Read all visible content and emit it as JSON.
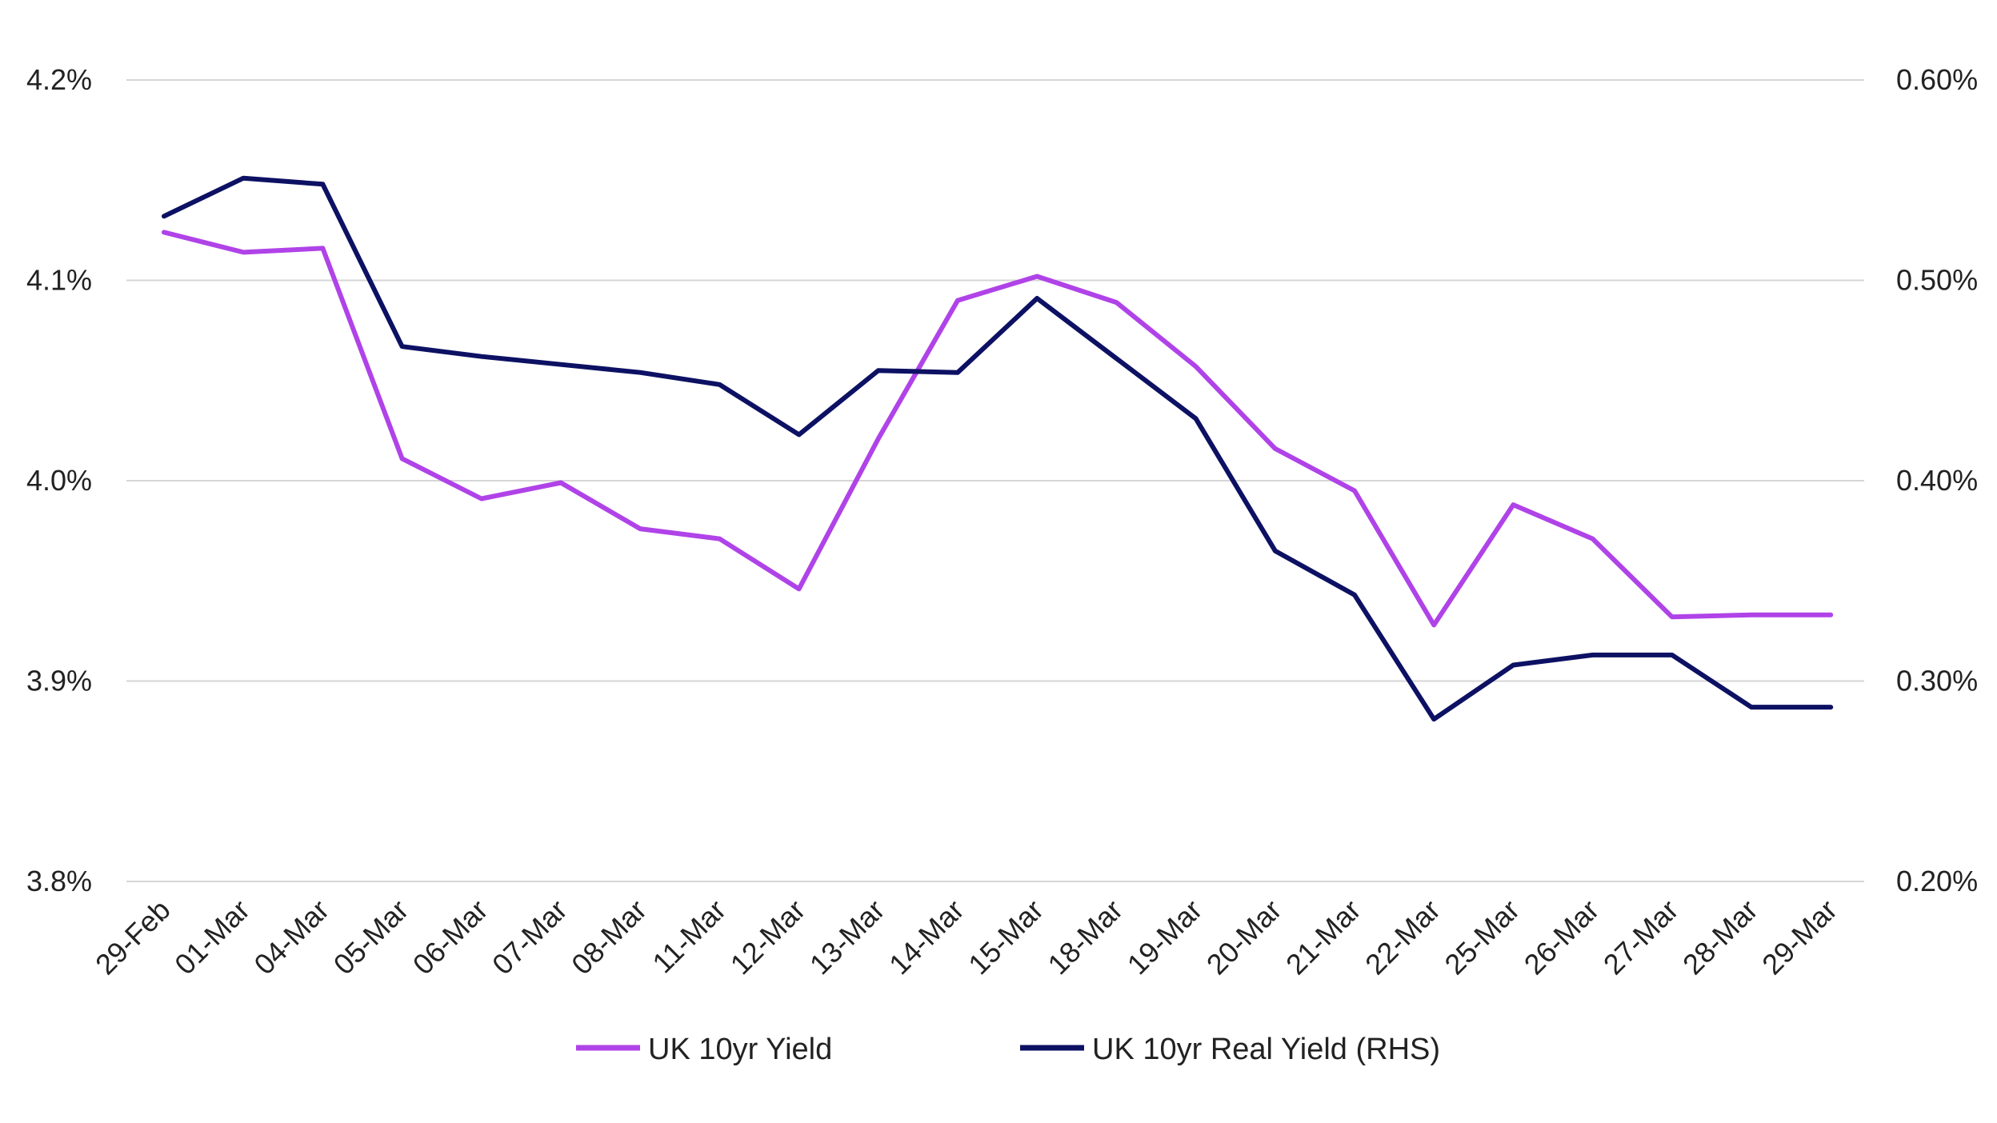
{
  "chart_data": {
    "type": "line",
    "categories": [
      "29-Feb",
      "01-Mar",
      "04-Mar",
      "05-Mar",
      "06-Mar",
      "07-Mar",
      "08-Mar",
      "11-Mar",
      "12-Mar",
      "13-Mar",
      "14-Mar",
      "15-Mar",
      "18-Mar",
      "19-Mar",
      "20-Mar",
      "21-Mar",
      "22-Mar",
      "25-Mar",
      "26-Mar",
      "27-Mar",
      "28-Mar",
      "29-Mar"
    ],
    "y_left": {
      "ylim": [
        3.8,
        4.2
      ],
      "ticks": [
        "3.8%",
        "3.9%",
        "4.0%",
        "4.1%",
        "4.2%"
      ],
      "tick_values": [
        3.8,
        3.9,
        4.0,
        4.1,
        4.2
      ]
    },
    "y_right": {
      "ylim": [
        0.2,
        0.6
      ],
      "ticks": [
        "0.20%",
        "0.30%",
        "0.40%",
        "0.50%",
        "0.60%"
      ],
      "tick_values": [
        0.2,
        0.3,
        0.4,
        0.5,
        0.6
      ]
    },
    "grid": true,
    "legend_position": "bottom",
    "series": [
      {
        "name": "UK 10yr Yield",
        "axis": "left",
        "color": "#b043e8",
        "values": [
          4.124,
          4.114,
          4.116,
          4.011,
          3.991,
          3.999,
          3.976,
          3.971,
          3.946,
          4.021,
          4.09,
          4.102,
          4.089,
          4.057,
          4.016,
          3.995,
          3.928,
          3.988,
          3.971,
          3.932,
          3.933,
          3.933
        ]
      },
      {
        "name": "UK 10yr Real Yield (RHS)",
        "axis": "right",
        "color": "#0d1163",
        "values": [
          0.532,
          0.551,
          0.548,
          0.467,
          0.462,
          0.458,
          0.454,
          0.448,
          0.423,
          0.455,
          0.454,
          0.491,
          0.461,
          0.431,
          0.365,
          0.343,
          0.281,
          0.308,
          0.313,
          0.313,
          0.287,
          0.287
        ]
      }
    ]
  }
}
